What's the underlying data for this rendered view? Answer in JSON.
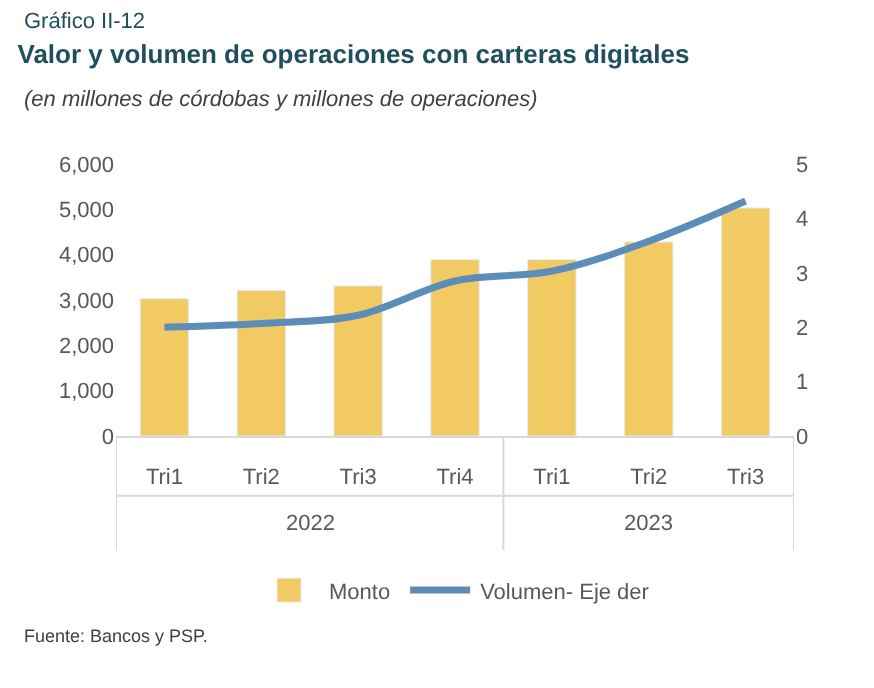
{
  "chart_data": {
    "type": "bar",
    "title": "Valor y volumen de operaciones con carteras digitales",
    "subtitle": "(en millones de córdobas y millones de operaciones)",
    "categories": [
      "Tri1",
      "Tri2",
      "Tri3",
      "Tri4",
      "Tri1",
      "Tri2",
      "Tri3"
    ],
    "series": [
      {
        "name": "Monto",
        "color": "#f2ca64",
        "values": [
          3030,
          3210,
          3310,
          3890,
          3890,
          4280,
          5030
        ]
      },
      {
        "name": "Volumen- Eje der",
        "type": "line",
        "axis": "y2",
        "color": "#5b8db8",
        "values": [
          2.0,
          2.07,
          2.22,
          2.85,
          3.03,
          3.58,
          4.32
        ]
      }
    ],
    "ylim": [
      0,
      6000
    ],
    "yticks": [
      {
        "value": 0,
        "label": "0"
      },
      {
        "value": 1000,
        "label": "1,000"
      },
      {
        "value": 2000,
        "label": "2,000"
      },
      {
        "value": 3000,
        "label": "3,000"
      },
      {
        "value": 4000,
        "label": "4,000"
      },
      {
        "value": 5000,
        "label": "5,000"
      },
      {
        "value": 6000,
        "label": "6,000"
      }
    ],
    "y2lim": [
      0,
      5
    ],
    "y2ticks": [
      0,
      1,
      2,
      3,
      4,
      5
    ],
    "annotations": [
      "2022",
      "2023",
      "Gráfico II-12",
      "Fuente: Bancos y PSP."
    ],
    "legend": "bottom",
    "marker": "none",
    "line_style": "solid"
  }
}
